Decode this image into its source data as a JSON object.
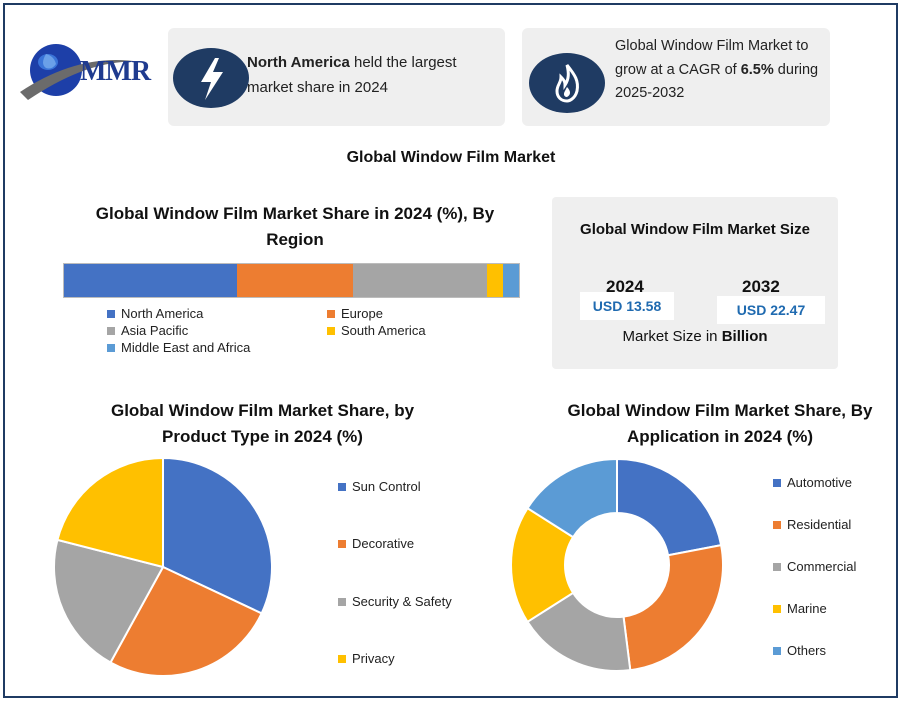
{
  "logo": {
    "text": "MMR"
  },
  "cards": {
    "region": {
      "bold": "North America",
      "rest": " held the largest market share in 2024",
      "icon": "lightning-icon"
    },
    "cagr": {
      "pre": "Global Window Film Market to grow at a CAGR of ",
      "bold": "6.5%",
      "post": " during 2025-2032",
      "icon": "flame-icon"
    }
  },
  "main_title": "Global Window Film Market",
  "size": {
    "title": "Global Window Film Market Size",
    "year1": "2024",
    "value1": "USD 13.58",
    "year2": "2032",
    "value2": "USD 22.47",
    "unit_pre": "Market Size in ",
    "unit_bold": "Billion"
  },
  "colors": {
    "blue": "#4472c4",
    "orange": "#ed7d31",
    "gray": "#a5a5a5",
    "yellow": "#ffc000",
    "lightblue": "#5b9bd5",
    "navy": "#1f3b63"
  },
  "chart_data": [
    {
      "type": "bar",
      "stacked": true,
      "orientation": "horizontal",
      "title": "Global Window Film Market Share in 2024 (%), By Region",
      "series": [
        {
          "name": "North America",
          "values": [
            38
          ]
        },
        {
          "name": "Europe",
          "values": [
            25.5
          ]
        },
        {
          "name": "Asia Pacific",
          "values": [
            29.5
          ]
        },
        {
          "name": "South America",
          "values": [
            3.5
          ]
        },
        {
          "name": "Middle East and Africa",
          "values": [
            3.5
          ]
        }
      ],
      "legend": "bottom"
    },
    {
      "type": "pie",
      "title": "Global Window Film Market Share, by Product Type  in 2024 (%)",
      "labels": [
        "Sun Control",
        "Decorative",
        "Security & Safety",
        "Privacy"
      ],
      "values": [
        32,
        26,
        21,
        21
      ],
      "legend": "right"
    },
    {
      "type": "pie",
      "donut": true,
      "title": "Global Window Film Market Share, By Application in 2024 (%)",
      "labels": [
        "Automotive",
        "Residential",
        "Commercial",
        "Marine",
        "Others"
      ],
      "values": [
        22,
        26,
        18,
        18,
        16
      ],
      "legend": "right"
    }
  ]
}
